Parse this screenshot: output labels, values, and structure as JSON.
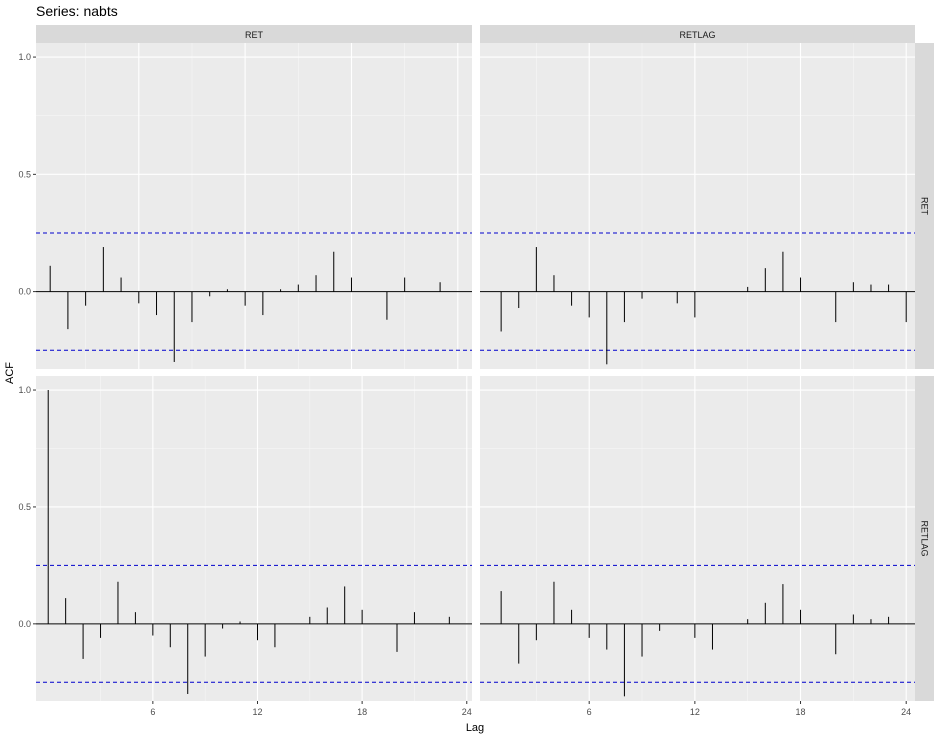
{
  "title": "Series: nabts",
  "xlabel": "Lag",
  "ylabel": "ACF",
  "col_strips": [
    "RET",
    "RETLAG"
  ],
  "row_strips": [
    "RET",
    "RETLAG"
  ],
  "x_ticks": [
    "6",
    "12",
    "18",
    "24"
  ],
  "y_ticks": [
    "0.0",
    "0.5",
    "1.0"
  ],
  "chart_data": [
    {
      "type": "bar",
      "panel": "RET x RET",
      "xlim": [
        0.2,
        24.8
      ],
      "ylim": [
        -0.33,
        1.06
      ],
      "conf_limit": 0.25,
      "x": [
        1,
        2,
        3,
        4,
        5,
        6,
        7,
        8,
        9,
        10,
        11,
        12,
        13,
        14,
        15,
        16,
        17,
        18,
        19,
        20,
        21,
        22,
        23,
        24
      ],
      "values": [
        0.11,
        -0.16,
        -0.06,
        0.19,
        0.06,
        -0.05,
        -0.1,
        -0.3,
        -0.13,
        -0.02,
        0.01,
        -0.06,
        -0.1,
        0.01,
        0.03,
        0.07,
        0.17,
        0.06,
        0.0,
        -0.12,
        0.06,
        0.0,
        0.04,
        0.0
      ]
    },
    {
      "type": "bar",
      "panel": "RET x RETLAG",
      "xlim": [
        -0.2,
        24.5
      ],
      "ylim": [
        -0.33,
        1.06
      ],
      "conf_limit": 0.25,
      "x": [
        1,
        2,
        3,
        4,
        5,
        6,
        7,
        8,
        9,
        10,
        11,
        12,
        13,
        14,
        15,
        16,
        17,
        18,
        19,
        20,
        21,
        22,
        23,
        24
      ],
      "values": [
        -0.17,
        -0.07,
        0.19,
        0.07,
        -0.06,
        -0.11,
        -0.31,
        -0.13,
        -0.03,
        0.0,
        -0.05,
        -0.11,
        0.0,
        0.0,
        0.02,
        0.1,
        0.17,
        0.06,
        0.0,
        -0.13,
        0.04,
        0.03,
        0.03,
        -0.13
      ]
    },
    {
      "type": "bar",
      "panel": "RETLAG x RET",
      "xlim": [
        -0.7,
        24.3
      ],
      "ylim": [
        -0.33,
        1.06
      ],
      "conf_limit": 0.25,
      "x": [
        0,
        1,
        2,
        3,
        4,
        5,
        6,
        7,
        8,
        9,
        10,
        11,
        12,
        13,
        14,
        15,
        16,
        17,
        18,
        19,
        20,
        21,
        22,
        23,
        24
      ],
      "values": [
        1.0,
        0.11,
        -0.15,
        -0.06,
        0.18,
        0.05,
        -0.05,
        -0.1,
        -0.3,
        -0.14,
        -0.02,
        0.01,
        -0.07,
        -0.1,
        0.0,
        0.03,
        0.07,
        0.16,
        0.06,
        0.0,
        -0.12,
        0.05,
        0.0,
        0.03,
        0.0
      ]
    },
    {
      "type": "bar",
      "panel": "RETLAG x RETLAG",
      "xlim": [
        -0.2,
        24.5
      ],
      "ylim": [
        -0.33,
        1.06
      ],
      "conf_limit": 0.25,
      "x": [
        1,
        2,
        3,
        4,
        5,
        6,
        7,
        8,
        9,
        10,
        11,
        12,
        13,
        14,
        15,
        16,
        17,
        18,
        19,
        20,
        21,
        22,
        23,
        24
      ],
      "values": [
        0.14,
        -0.17,
        -0.07,
        0.18,
        0.06,
        -0.06,
        -0.11,
        -0.31,
        -0.14,
        -0.03,
        0.0,
        -0.06,
        -0.11,
        0.0,
        0.02,
        0.09,
        0.17,
        0.06,
        0.0,
        -0.13,
        0.04,
        0.02,
        0.03,
        0.0
      ]
    }
  ]
}
